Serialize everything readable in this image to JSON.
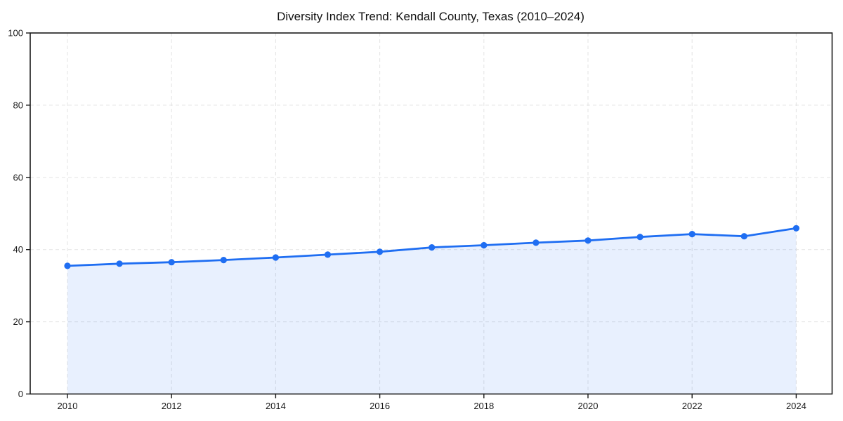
{
  "figure": {
    "background": "#ffffff"
  },
  "chart_data": {
    "type": "line",
    "title": "Diversity Index Trend: Kendall County, Texas (2010–2024)",
    "x": [
      2010,
      2011,
      2012,
      2013,
      2014,
      2015,
      2016,
      2017,
      2018,
      2019,
      2020,
      2021,
      2022,
      2023,
      2024
    ],
    "series": [
      {
        "name": "Diversity Index",
        "values": [
          35.5,
          36.1,
          36.5,
          37.1,
          37.8,
          38.6,
          39.4,
          40.6,
          41.2,
          41.9,
          42.5,
          43.5,
          44.3,
          43.7,
          45.9
        ]
      }
    ],
    "xlabel": "",
    "ylabel": "",
    "ylim": [
      0,
      100
    ],
    "yticks": [
      0,
      20,
      40,
      60,
      80,
      100
    ],
    "xticks": [
      2010,
      2012,
      2014,
      2016,
      2018,
      2020,
      2022,
      2024
    ],
    "grid": true,
    "grid_style": "dashed",
    "legend_position": "none",
    "marker": "circle",
    "area_fill": true,
    "colors": {
      "line": "#1f6ef2",
      "marker": "#1f6ef2",
      "fill": "rgba(31,110,242,0.10)",
      "grid": "#e3e3e3",
      "axis": "#1a1a1a",
      "tick_label": "#1a1a1a",
      "title": "#111111"
    }
  }
}
